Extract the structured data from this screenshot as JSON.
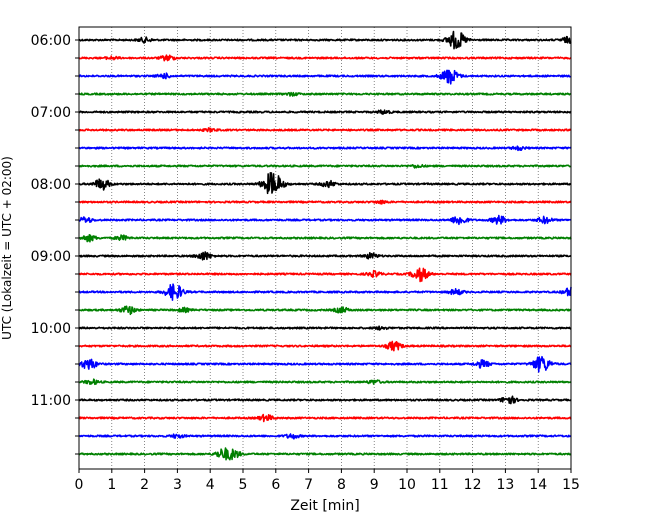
{
  "chart_data": {
    "type": "line",
    "title": "",
    "xlabel": "Zeit  [min]",
    "ylabel": "UTC (Lokalzeit = UTC + 02:00)",
    "xlim": [
      0,
      15
    ],
    "x_ticks": [
      "0",
      "1",
      "2",
      "3",
      "4",
      "5",
      "6",
      "7",
      "8",
      "9",
      "10",
      "11",
      "12",
      "13",
      "14",
      "15"
    ],
    "y_tick_labels": [
      "06:00",
      "07:00",
      "08:00",
      "09:00",
      "10:00",
      "11:00"
    ],
    "grid": "vertical dotted",
    "trace_colors": [
      "#000000",
      "#ff0000",
      "#0000ff",
      "#008000"
    ],
    "traces": [
      {
        "start": "06:00",
        "events": [
          {
            "t": 11.5,
            "amp": 1.0
          },
          {
            "t": 2.0,
            "amp": 0.25
          },
          {
            "t": 14.9,
            "amp": 0.3
          }
        ]
      },
      {
        "start": "06:15",
        "events": [
          {
            "t": 2.7,
            "amp": 0.3
          },
          {
            "t": 1.0,
            "amp": 0.15
          }
        ]
      },
      {
        "start": "06:30",
        "events": [
          {
            "t": 11.3,
            "amp": 0.85
          },
          {
            "t": 2.6,
            "amp": 0.25
          }
        ]
      },
      {
        "start": "06:45",
        "events": [
          {
            "t": 6.5,
            "amp": 0.15
          }
        ]
      },
      {
        "start": "07:00",
        "events": [
          {
            "t": 9.3,
            "amp": 0.2
          }
        ]
      },
      {
        "start": "07:15",
        "events": [
          {
            "t": 4.0,
            "amp": 0.15
          }
        ]
      },
      {
        "start": "07:30",
        "events": [
          {
            "t": 13.4,
            "amp": 0.2
          }
        ]
      },
      {
        "start": "07:45",
        "events": [
          {
            "t": 10.3,
            "amp": 0.15
          }
        ]
      },
      {
        "start": "08:00",
        "events": [
          {
            "t": 5.9,
            "amp": 1.3
          },
          {
            "t": 0.7,
            "amp": 0.6
          },
          {
            "t": 7.6,
            "amp": 0.35
          }
        ]
      },
      {
        "start": "08:15",
        "events": [
          {
            "t": 9.2,
            "amp": 0.15
          }
        ]
      },
      {
        "start": "08:30",
        "events": [
          {
            "t": 11.6,
            "amp": 0.5
          },
          {
            "t": 12.8,
            "amp": 0.45
          },
          {
            "t": 14.2,
            "amp": 0.35
          },
          {
            "t": 0.2,
            "amp": 0.3
          }
        ]
      },
      {
        "start": "08:45",
        "events": [
          {
            "t": 0.3,
            "amp": 0.35
          },
          {
            "t": 1.3,
            "amp": 0.25
          }
        ]
      },
      {
        "start": "09:00",
        "events": [
          {
            "t": 3.8,
            "amp": 0.45
          },
          {
            "t": 8.9,
            "amp": 0.3
          }
        ]
      },
      {
        "start": "09:15",
        "events": [
          {
            "t": 10.4,
            "amp": 0.75
          },
          {
            "t": 9.0,
            "amp": 0.3
          }
        ]
      },
      {
        "start": "09:30",
        "events": [
          {
            "t": 2.9,
            "amp": 0.9
          },
          {
            "t": 11.5,
            "amp": 0.3
          },
          {
            "t": 15.0,
            "amp": 0.5
          }
        ]
      },
      {
        "start": "09:45",
        "events": [
          {
            "t": 1.5,
            "amp": 0.45
          },
          {
            "t": 8.0,
            "amp": 0.3
          },
          {
            "t": 3.2,
            "amp": 0.2
          }
        ]
      },
      {
        "start": "10:00",
        "events": [
          {
            "t": 9.2,
            "amp": 0.15
          }
        ]
      },
      {
        "start": "10:15",
        "events": [
          {
            "t": 9.6,
            "amp": 0.5
          }
        ]
      },
      {
        "start": "10:30",
        "events": [
          {
            "t": 0.3,
            "amp": 0.6
          },
          {
            "t": 14.1,
            "amp": 0.9
          },
          {
            "t": 12.3,
            "amp": 0.4
          }
        ]
      },
      {
        "start": "10:45",
        "events": [
          {
            "t": 0.4,
            "amp": 0.25
          },
          {
            "t": 9.0,
            "amp": 0.2
          }
        ]
      },
      {
        "start": "11:00",
        "events": [
          {
            "t": 13.1,
            "amp": 0.45
          }
        ]
      },
      {
        "start": "11:15",
        "events": [
          {
            "t": 5.7,
            "amp": 0.35
          }
        ]
      },
      {
        "start": "11:30",
        "events": [
          {
            "t": 6.5,
            "amp": 0.25
          },
          {
            "t": 3.0,
            "amp": 0.2
          }
        ]
      },
      {
        "start": "11:45",
        "events": [
          {
            "t": 4.4,
            "amp": 0.55
          },
          {
            "t": 4.7,
            "amp": 0.45
          }
        ]
      }
    ]
  }
}
